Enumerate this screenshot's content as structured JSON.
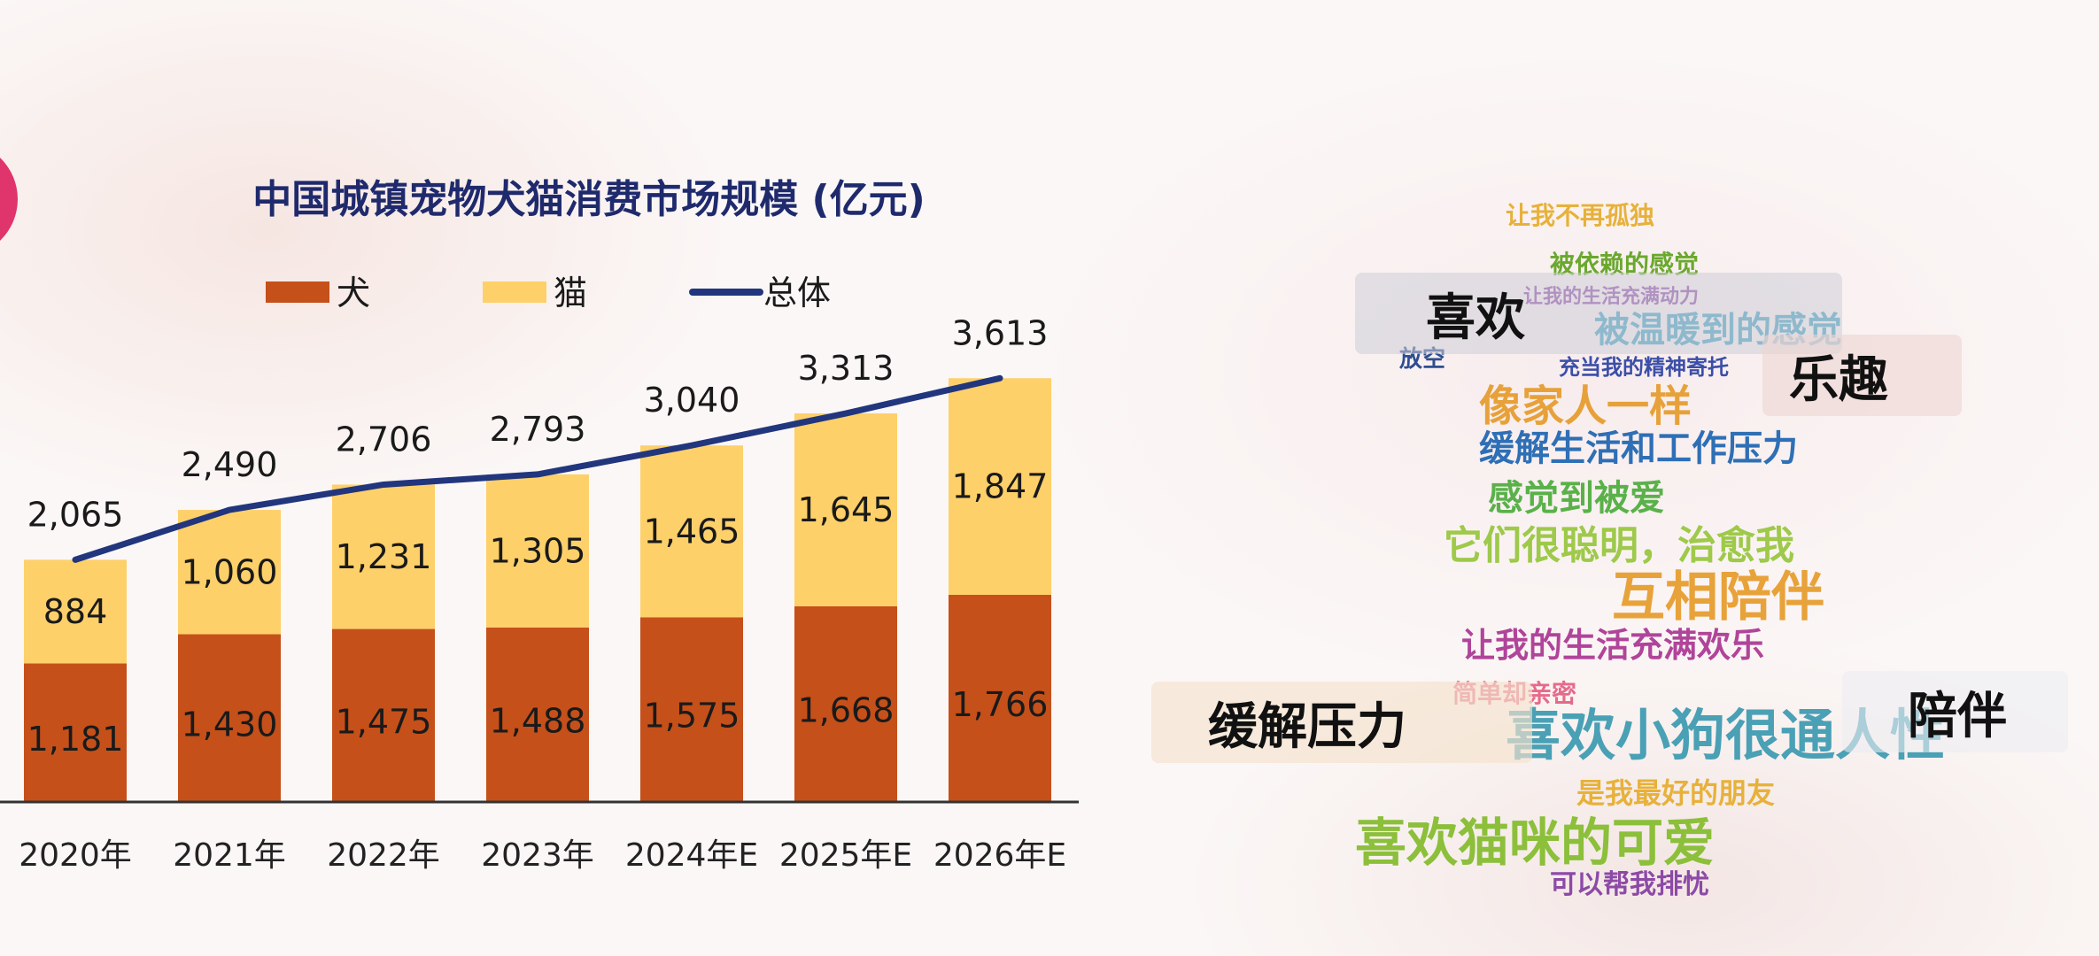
{
  "chart_data": {
    "type": "bar",
    "stacked": true,
    "title": "中国城镇宠物犬猫消费市场规模 (亿元)",
    "categories": [
      "2020年",
      "2021年",
      "2022年",
      "2023年",
      "2024年E",
      "2025年E",
      "2026年E"
    ],
    "series": [
      {
        "name": "犬",
        "color": "#c5501a",
        "values": [
          1181,
          1430,
          1475,
          1488,
          1575,
          1668,
          1766
        ]
      },
      {
        "name": "猫",
        "color": "#fdd06a",
        "values": [
          884,
          1060,
          1231,
          1305,
          1465,
          1645,
          1847
        ]
      }
    ],
    "line": {
      "name": "总体",
      "color": "#22367e",
      "values": [
        2065,
        2490,
        2706,
        2793,
        3040,
        3313,
        3613
      ]
    },
    "data_labels": {
      "dog": [
        "1,181",
        "1,430",
        "1,475",
        "1,488",
        "1,575",
        "1,668",
        "1,766"
      ],
      "cat": [
        "884",
        "1,060",
        "1,231",
        "1,305",
        "1,465",
        "1,645",
        "1,847"
      ],
      "total": [
        "2,065",
        "2,490",
        "2,706",
        "2,793",
        "3,040",
        "3,313",
        "3,613"
      ]
    },
    "ylim": [
      0,
      3700
    ],
    "grid": false,
    "legend": "top-center"
  },
  "word_cloud": {
    "tags": [
      "喜欢",
      "乐趣",
      "缓解压力",
      "陪伴"
    ],
    "words": [
      {
        "text": "让我不再孤独",
        "color": "#e7b13a"
      },
      {
        "text": "被依赖的感觉",
        "color": "#6aa82e"
      },
      {
        "text": "让我的生活充满动力",
        "color": "#8c4aa6"
      },
      {
        "text": "被温暖到的感觉",
        "color": "#41a0c2"
      },
      {
        "text": "充当我的精神寄托",
        "color": "#3b4ea8"
      },
      {
        "text": "放空",
        "color": "#2e4d8f"
      },
      {
        "text": "像家人一样",
        "color": "#e7a13a"
      },
      {
        "text": "缓解生活和工作压力",
        "color": "#2e6fb5"
      },
      {
        "text": "感觉到被爱",
        "color": "#5ab14a"
      },
      {
        "text": "它们很聪明，治愈我",
        "color": "#9ec94a"
      },
      {
        "text": "互相陪伴",
        "color": "#e8a23a"
      },
      {
        "text": "让我的生活充满欢乐",
        "color": "#b0449a"
      },
      {
        "text": "简单却亲密",
        "color": "#e66a8a"
      },
      {
        "text": "喜欢小狗很通人性",
        "color": "#4aa0b5"
      },
      {
        "text": "是我最好的朋友",
        "color": "#e7b13a"
      },
      {
        "text": "喜欢猫咪的可爱",
        "color": "#8cbf3a"
      },
      {
        "text": "可以帮我排忧",
        "color": "#8c4aa6"
      }
    ]
  }
}
